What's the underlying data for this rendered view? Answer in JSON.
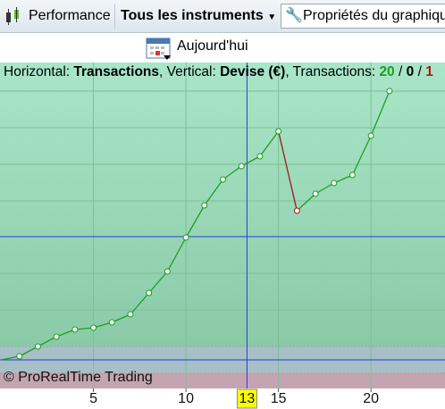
{
  "toolbar": {
    "performance": "Performance",
    "instruments": "Tous les instruments",
    "properties": "Propriétés du graphique"
  },
  "date_button": "Aujourd'hui",
  "info": {
    "h_label": "Horizontal:",
    "h_value": "Transactions",
    "v_label": ", Vertical:",
    "v_value": "Devise (€)",
    "t_label": ", Transactions:",
    "winning": 20,
    "sep": "/",
    "neutral": 0,
    "losing": 1
  },
  "chart_data": {
    "type": "line",
    "x": [
      0,
      1,
      2,
      3,
      4,
      5,
      6,
      7,
      8,
      9,
      10,
      11,
      12,
      13,
      14,
      15,
      16,
      17,
      18,
      19,
      20,
      21
    ],
    "values": [
      0,
      0.4,
      1.5,
      2.6,
      3.4,
      3.6,
      4.2,
      5.1,
      7.5,
      9.9,
      13.7,
      17.3,
      20.2,
      21.7,
      22.8,
      25.6,
      16.7,
      18.6,
      19.8,
      20.7,
      25.1,
      30.1
    ],
    "colors": [
      "#1e9e1e",
      "#1e9e1e",
      "#1e9e1e",
      "#1e9e1e",
      "#1e9e1e",
      "#1e9e1e",
      "#1e9e1e",
      "#1e9e1e",
      "#1e9e1e",
      "#1e9e1e",
      "#1e9e1e",
      "#1e9e1e",
      "#1e9e1e",
      "#1e9e1e",
      "#1e9e1e",
      "#1e9e1e",
      "#a01818",
      "#1e9e1e",
      "#1e9e1e",
      "#1e9e1e",
      "#1e9e1e",
      "#1e9e1e"
    ],
    "xlim": [
      0,
      24
    ],
    "xticks": [
      5,
      10,
      15,
      20
    ],
    "ylim": [
      -3.2,
      33.3
    ],
    "crosshair": {
      "x": 13.3,
      "label": "13",
      "y": 13.8
    },
    "watermark": "© ProRealTime Trading"
  }
}
